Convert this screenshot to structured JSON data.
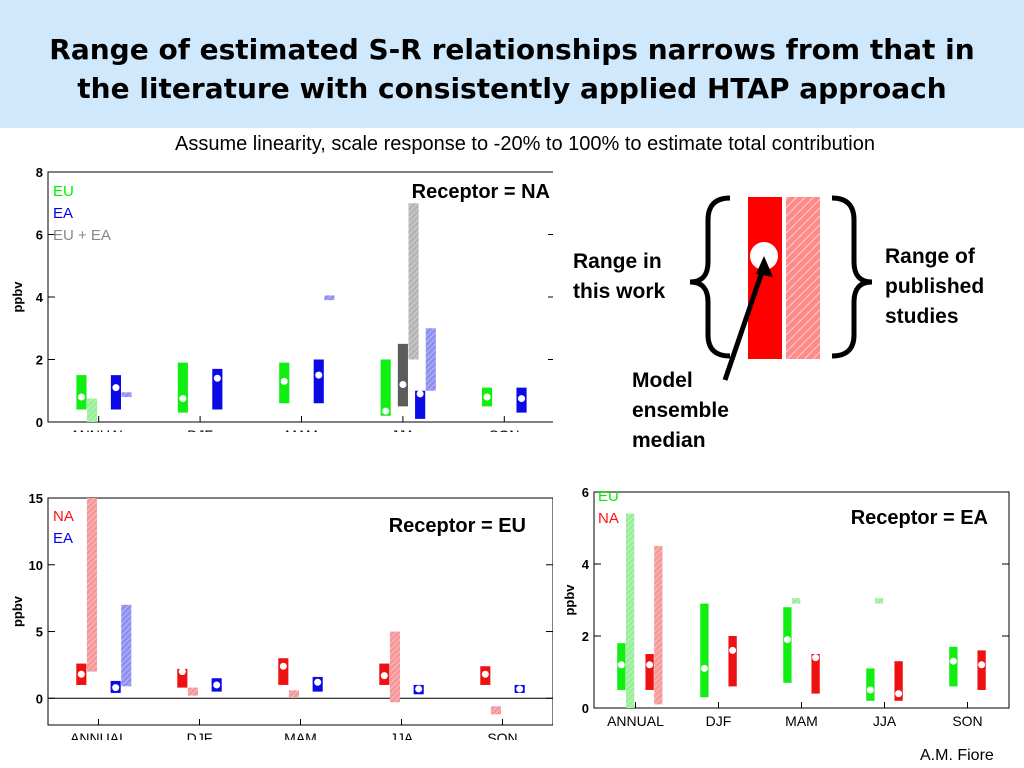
{
  "slide": {
    "title": "Range of estimated S-R relationships narrows from that in\nthe literature with consistently applied HTAP approach",
    "subtitle": "Assume linearity, scale response to -20% to 100% to estimate total contribution",
    "credit": "A.M. Fiore"
  },
  "legend_box": {
    "left_label": "Range in\nthis work",
    "right_label": "Range of\npublished\nstudies",
    "arrow_label": "Model\nensemble\nmedian",
    "this_work_color": "#ff0000",
    "published_color": "#ff8a8a"
  },
  "chart_data": [
    {
      "type": "bar",
      "title": "Receptor = NA",
      "ylabel": "ppbv",
      "categories": [
        "ANNUAL",
        "DJF",
        "MAM",
        "JJA",
        "SON"
      ],
      "ylim": [
        0,
        8
      ],
      "yticks": [
        "0",
        "2",
        "4",
        "6",
        "8"
      ],
      "legend": [
        {
          "label": "EU",
          "color": "#00ee00"
        },
        {
          "label": "EA",
          "color": "#0000ee"
        },
        {
          "label": "EU + EA",
          "color": "#888888"
        }
      ],
      "series": [
        {
          "name": "EU",
          "color": "#11ee11",
          "light": "#99ee99",
          "offset": -0.34,
          "this_work": [
            [
              0.4,
              1.5
            ],
            [
              0.3,
              1.9
            ],
            [
              0.6,
              1.9
            ],
            [
              0.2,
              2.0
            ],
            [
              0.5,
              1.1
            ]
          ],
          "median": [
            0.8,
            0.75,
            1.3,
            0.35,
            0.8
          ],
          "published": [
            [
              0.0,
              0.75
            ],
            null,
            null,
            null,
            null
          ]
        },
        {
          "name": "EA",
          "color": "#0a0ae6",
          "light": "#8f8ff2",
          "offset": 0.34,
          "this_work": [
            [
              0.4,
              1.5
            ],
            [
              0.4,
              1.7
            ],
            [
              0.6,
              2.0
            ],
            [
              0.1,
              1.0
            ],
            [
              0.3,
              1.1
            ]
          ],
          "median": [
            1.1,
            1.4,
            1.5,
            0.9,
            0.75
          ],
          "published": [
            [
              0.8,
              0.95
            ],
            null,
            [
              3.9,
              4.05
            ],
            [
              1.0,
              3.0
            ],
            null
          ]
        },
        {
          "name": "EU + EA",
          "color": "#5c5c5c",
          "light": "#b5b5b5",
          "offset": 0.0,
          "this_work": [
            null,
            null,
            null,
            [
              0.5,
              2.5
            ],
            null
          ],
          "median": [
            null,
            null,
            null,
            1.2,
            null
          ],
          "published": [
            null,
            null,
            null,
            [
              2.0,
              7.0
            ],
            null
          ]
        }
      ]
    },
    {
      "type": "bar",
      "title": "Receptor = EU",
      "ylabel": "ppbv",
      "categories": [
        "ANNUAL",
        "DJF",
        "MAM",
        "JJA",
        "SON"
      ],
      "ylim": [
        -2,
        15
      ],
      "yticks": [
        "0",
        "5",
        "10",
        "15"
      ],
      "legend": [
        {
          "label": "NA",
          "color": "#ff1010"
        },
        {
          "label": "EA",
          "color": "#0000ee"
        }
      ],
      "series": [
        {
          "name": "NA",
          "color": "#ee1111",
          "light": "#f6979a",
          "offset": -0.34,
          "this_work": [
            [
              1.0,
              2.6
            ],
            [
              0.8,
              2.2
            ],
            [
              1.0,
              3.0
            ],
            [
              1.0,
              2.6
            ],
            [
              1.0,
              2.4
            ]
          ],
          "median": [
            1.8,
            2.0,
            2.4,
            1.7,
            1.8
          ],
          "published": [
            [
              2.0,
              15.0
            ],
            [
              0.2,
              0.8
            ],
            [
              0.1,
              0.6
            ],
            [
              -0.3,
              5.0
            ],
            [
              -1.2,
              -0.6
            ]
          ]
        },
        {
          "name": "EA",
          "color": "#0a0ae6",
          "light": "#8f8ff2",
          "offset": 0.34,
          "this_work": [
            [
              0.4,
              1.3
            ],
            [
              0.5,
              1.5
            ],
            [
              0.5,
              1.6
            ],
            [
              0.3,
              1.0
            ],
            [
              0.4,
              1.0
            ]
          ],
          "median": [
            0.8,
            1.0,
            1.2,
            0.7,
            0.7
          ],
          "published": [
            [
              0.9,
              7.0
            ],
            null,
            null,
            null,
            null
          ]
        }
      ]
    },
    {
      "type": "bar",
      "title": "Receptor = EA",
      "ylabel": "ppbv",
      "categories": [
        "ANNUAL",
        "DJF",
        "MAM",
        "JJA",
        "SON"
      ],
      "ylim": [
        0,
        6
      ],
      "yticks": [
        "0",
        "2",
        "4",
        "6"
      ],
      "legend": [
        {
          "label": "EU",
          "color": "#00ee00"
        },
        {
          "label": "NA",
          "color": "#ff1010"
        }
      ],
      "series": [
        {
          "name": "EU",
          "color": "#11ee11",
          "light": "#99ee99",
          "offset": -0.34,
          "this_work": [
            [
              0.5,
              1.8
            ],
            [
              0.3,
              2.9
            ],
            [
              0.7,
              2.8
            ],
            [
              0.2,
              1.1
            ],
            [
              0.6,
              1.7
            ]
          ],
          "median": [
            1.2,
            1.1,
            1.9,
            0.5,
            1.3
          ],
          "published": [
            [
              0.0,
              5.4
            ],
            null,
            [
              2.9,
              3.05
            ],
            [
              2.9,
              3.05
            ],
            null
          ]
        },
        {
          "name": "NA",
          "color": "#ee1111",
          "light": "#f6979a",
          "offset": 0.34,
          "this_work": [
            [
              0.5,
              1.5
            ],
            [
              0.6,
              2.0
            ],
            [
              0.4,
              1.5
            ],
            [
              0.2,
              1.3
            ],
            [
              0.5,
              1.6
            ]
          ],
          "median": [
            1.2,
            1.6,
            1.4,
            0.4,
            1.2
          ],
          "published": [
            [
              0.1,
              4.5
            ],
            null,
            null,
            null,
            null
          ]
        }
      ]
    }
  ]
}
